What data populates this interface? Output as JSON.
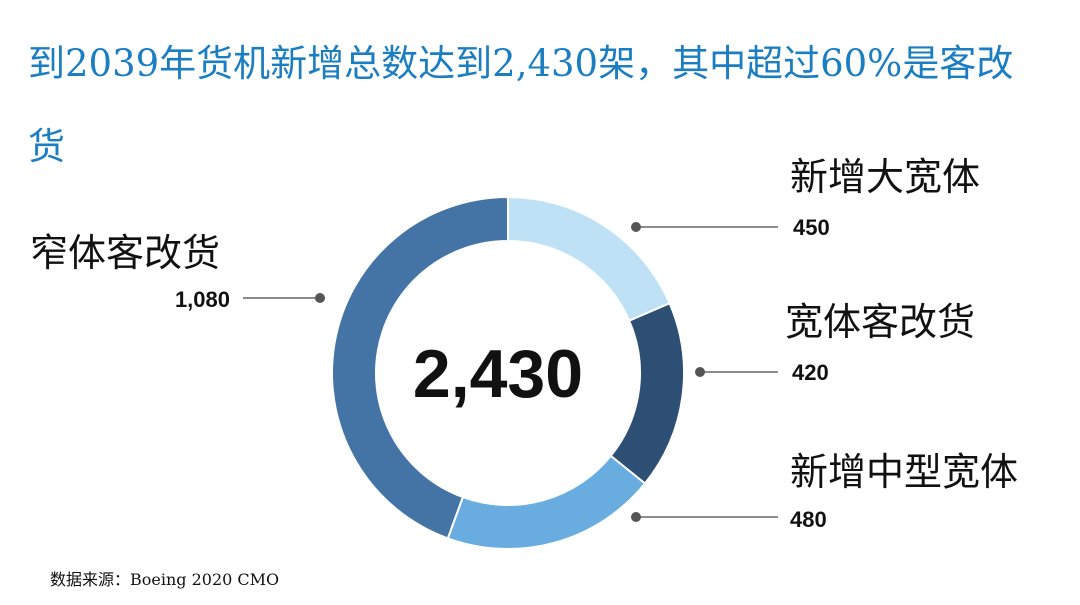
{
  "title": "到2039年货机新增总数达到2,430架，其中超过60%是客改货",
  "source": "数据来源：Boeing 2020 CMO",
  "chart_data": {
    "type": "pie",
    "style": "donut",
    "total_label": "2,430",
    "categories": [
      "新增大宽体",
      "宽体客改货",
      "新增中型宽体",
      "窄体客改货"
    ],
    "values": [
      450,
      420,
      480,
      1080
    ],
    "value_labels": [
      "450",
      "420",
      "480",
      "1,080"
    ],
    "colors": [
      "#bfe1f5",
      "#2e4f74",
      "#68ace0",
      "#4474a6"
    ],
    "start_angle_deg": 0,
    "direction": "clockwise"
  }
}
